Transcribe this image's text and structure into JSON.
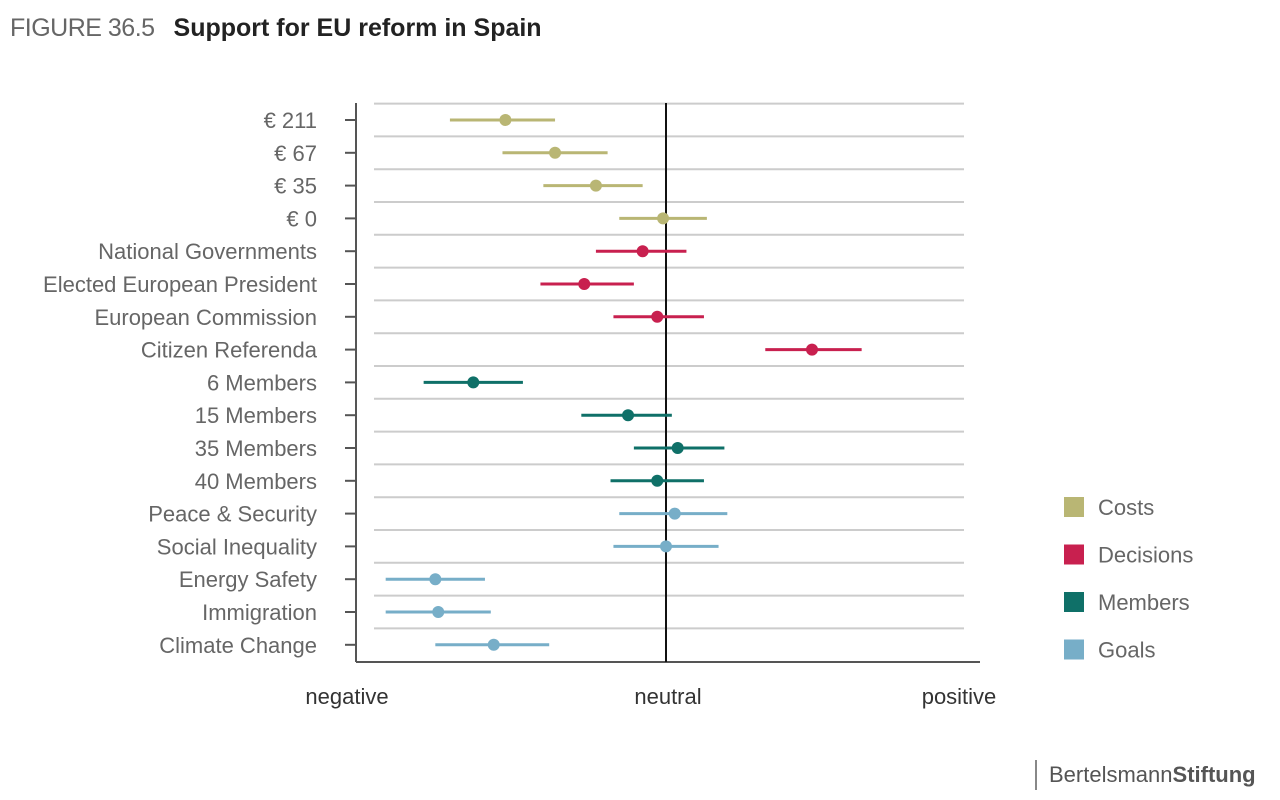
{
  "figure": {
    "label": "FIGURE 36.5",
    "title": "Support for EU reform in Spain"
  },
  "logo": {
    "part1": "Bertelsmann",
    "part2": "Stiftung"
  },
  "colors": {
    "Costs": "#b9b674",
    "Decisions": "#c8204f",
    "Members": "#0f7068",
    "Goals": "#77aec8"
  },
  "chart_data": {
    "type": "scatter",
    "title": "Support for EU reform in Spain",
    "orientation": "horizontal",
    "x_axis_tick_labels": [
      "negative",
      "neutral",
      "positive"
    ],
    "xlim": [
      -1,
      1
    ],
    "reference_line": 0,
    "grid": true,
    "legend_placement": "bottom-right",
    "legend": [
      "Costs",
      "Decisions",
      "Members",
      "Goals"
    ],
    "categories": [
      "€ 211",
      "€ 67",
      "€ 35",
      "€ 0",
      "National Governments",
      "Elected European President",
      "European Commission",
      "Citizen Referenda",
      "6 Members",
      "15 Members",
      "35 Members",
      "40 Members",
      "Peace & Security",
      "Social Inequality",
      "Energy Safety",
      "Immigration",
      "Climate Change"
    ],
    "points": [
      {
        "label": "€ 211",
        "group": "Costs",
        "value": -0.55,
        "low": -0.74,
        "high": -0.38
      },
      {
        "label": "€ 67",
        "group": "Costs",
        "value": -0.38,
        "low": -0.56,
        "high": -0.2
      },
      {
        "label": "€ 35",
        "group": "Costs",
        "value": -0.24,
        "low": -0.42,
        "high": -0.08
      },
      {
        "label": "€ 0",
        "group": "Costs",
        "value": -0.01,
        "low": -0.16,
        "high": 0.14
      },
      {
        "label": "National Governments",
        "group": "Decisions",
        "value": -0.08,
        "low": -0.24,
        "high": 0.07
      },
      {
        "label": "Elected European President",
        "group": "Decisions",
        "value": -0.28,
        "low": -0.43,
        "high": -0.11
      },
      {
        "label": "European Commission",
        "group": "Decisions",
        "value": -0.03,
        "low": -0.18,
        "high": 0.13
      },
      {
        "label": "Citizen Referenda",
        "group": "Decisions",
        "value": 0.5,
        "low": 0.34,
        "high": 0.67
      },
      {
        "label": "6 Members",
        "group": "Members",
        "value": -0.66,
        "low": -0.83,
        "high": -0.49
      },
      {
        "label": "15 Members",
        "group": "Members",
        "value": -0.13,
        "low": -0.29,
        "high": 0.02
      },
      {
        "label": "35 Members",
        "group": "Members",
        "value": 0.04,
        "low": -0.11,
        "high": 0.2
      },
      {
        "label": "40 Members",
        "group": "Members",
        "value": -0.03,
        "low": -0.19,
        "high": 0.13
      },
      {
        "label": "Peace & Security",
        "group": "Goals",
        "value": 0.03,
        "low": -0.16,
        "high": 0.21
      },
      {
        "label": "Social Inequality",
        "group": "Goals",
        "value": 0.0,
        "low": -0.18,
        "high": 0.18
      },
      {
        "label": "Energy Safety",
        "group": "Goals",
        "value": -0.79,
        "low": -0.96,
        "high": -0.62
      },
      {
        "label": "Immigration",
        "group": "Goals",
        "value": -0.78,
        "low": -0.96,
        "high": -0.6
      },
      {
        "label": "Climate Change",
        "group": "Goals",
        "value": -0.59,
        "low": -0.79,
        "high": -0.4
      }
    ]
  }
}
